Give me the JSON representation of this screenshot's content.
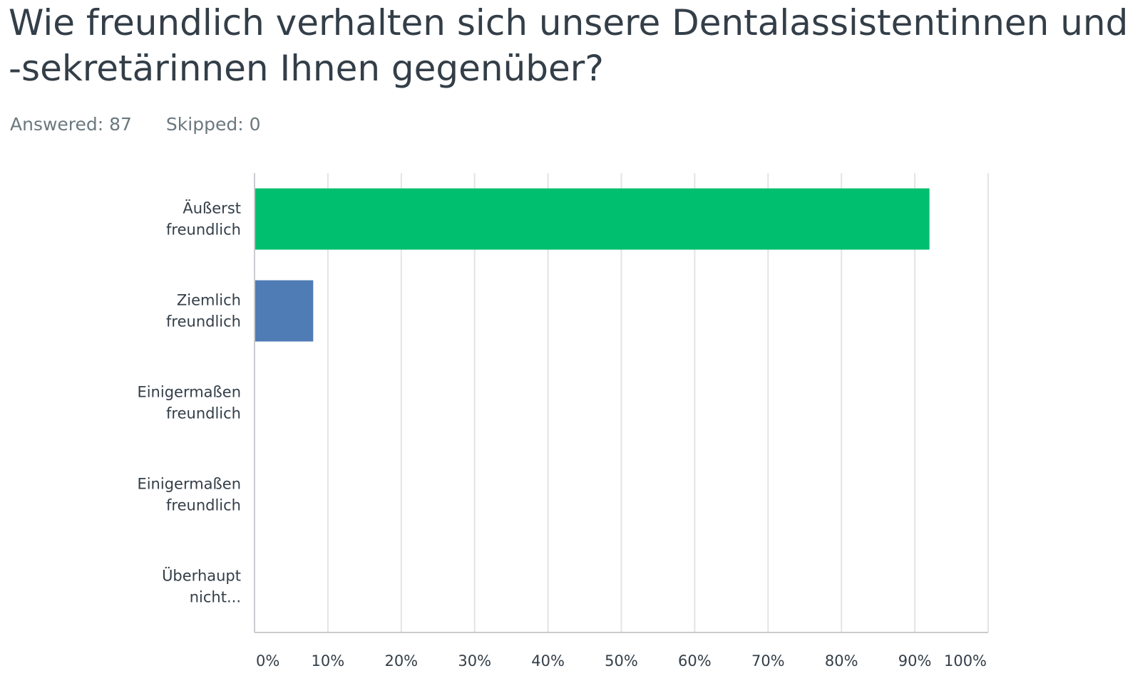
{
  "question": {
    "title": "Wie freundlich verhalten sich unsere Dentalassistentinnen und -sekretärinnen Ihnen gegenüber?"
  },
  "stats": {
    "answered": "Answered: 87",
    "skipped": "Skipped: 0"
  },
  "colors": {
    "bar_primary": "#00bf6f",
    "bar_secondary": "#507cb6",
    "grid": "#e2e4e5",
    "axis": "#c9cccf"
  },
  "chart_data": {
    "type": "bar",
    "orientation": "horizontal",
    "categories": [
      [
        "Äußerst",
        "freundlich"
      ],
      [
        "Ziemlich",
        "freundlich"
      ],
      [
        "Einigermaßen",
        "freundlich"
      ],
      [
        "Einigermaßen",
        "freundlich"
      ],
      [
        "Überhaupt",
        "nicht..."
      ]
    ],
    "values": [
      92,
      8,
      0,
      0,
      0
    ],
    "bar_colors": [
      "#00bf6f",
      "#507cb6",
      "#507cb6",
      "#507cb6",
      "#507cb6"
    ],
    "xticks": [
      "0%",
      "10%",
      "20%",
      "30%",
      "40%",
      "50%",
      "60%",
      "70%",
      "80%",
      "90%",
      "100%"
    ],
    "xlim": [
      0,
      100
    ],
    "grid": true
  }
}
